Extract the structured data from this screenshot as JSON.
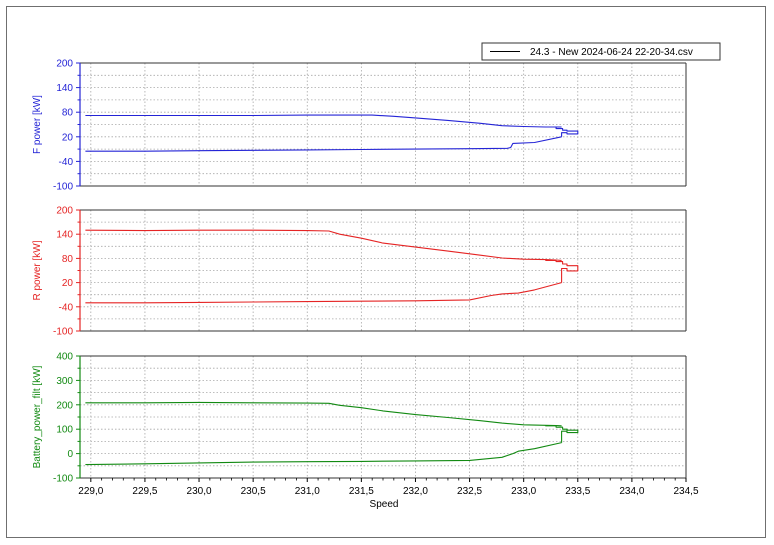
{
  "chart_data": {
    "type": "line",
    "xlabel": "Speed",
    "xlim": [
      228.9,
      234.5
    ],
    "xticks": [
      "229,0",
      "229,5",
      "230,0",
      "230,5",
      "231,0",
      "231,5",
      "232,0",
      "232,5",
      "233,0",
      "233,5",
      "234,0",
      "234,5"
    ],
    "xtick_values": [
      229.0,
      229.5,
      230.0,
      230.5,
      231.0,
      231.5,
      232.0,
      232.5,
      233.0,
      233.5,
      234.0,
      234.5
    ],
    "grid": true,
    "legend": {
      "placement": "top-right",
      "entries": [
        {
          "label": "24.3 - New 2024-06-24 22-20-34.csv",
          "color": "#000000"
        }
      ]
    },
    "panels": [
      {
        "id": "f-power",
        "ylabel": "F power [kW]",
        "color": "#2424d6",
        "ylim": [
          -100,
          200
        ],
        "yticks": [
          -100,
          -40,
          20,
          80,
          140,
          200
        ],
        "series": [
          {
            "x": [
              228.95,
              229.5,
              230.0,
              230.5,
              231.0,
              231.3,
              231.6,
              231.8,
              232.0,
              232.3,
              232.6,
              232.8,
              233.0,
              233.2,
              233.25,
              233.3,
              233.35
            ],
            "y": [
              72,
              72,
              72,
              72,
              73,
              73,
              73,
              70,
              66,
              60,
              53,
              47,
              45,
              44,
              44,
              44,
              44
            ]
          },
          {
            "x": [
              233.2,
              233.3,
              233.3,
              233.36,
              233.36,
              233.4,
              233.4,
              233.5,
              233.5,
              233.4,
              233.4,
              233.35,
              233.35
            ],
            "y": [
              44,
              44,
              40,
              40,
              36,
              36,
              34,
              34,
              27,
              27,
              30,
              30,
              20
            ]
          },
          {
            "x": [
              233.35,
              233.1,
              232.9,
              232.88,
              232.85,
              232.5,
              232.0,
              231.5,
              231.0,
              230.5,
              230.0,
              229.5,
              228.95
            ],
            "y": [
              20,
              6,
              4,
              -6,
              -8,
              -9,
              -10,
              -11,
              -12,
              -13,
              -14,
              -15,
              -15
            ]
          }
        ]
      },
      {
        "id": "r-power",
        "ylabel": "R power [kW]",
        "color": "#e52424",
        "ylim": [
          -100,
          200
        ],
        "yticks": [
          -100,
          -40,
          20,
          80,
          140,
          200
        ],
        "series": [
          {
            "x": [
              228.95,
              229.5,
              230.0,
              230.5,
              231.0,
              231.2,
              231.3,
              231.5,
              231.7,
              232.0,
              232.3,
              232.6,
              232.8,
              233.0,
              233.2,
              233.3,
              233.35
            ],
            "y": [
              150,
              149,
              150,
              150,
              149,
              148,
              140,
              130,
              118,
              108,
              98,
              88,
              81,
              78,
              77,
              76,
              75
            ]
          },
          {
            "x": [
              233.2,
              233.3,
              233.3,
              233.36,
              233.36,
              233.4,
              233.4,
              233.5,
              233.5,
              233.4,
              233.4,
              233.35,
              233.35
            ],
            "y": [
              75,
              75,
              72,
              72,
              66,
              66,
              62,
              62,
              49,
              49,
              55,
              55,
              20
            ]
          },
          {
            "x": [
              233.35,
              233.1,
              232.95,
              232.8,
              232.7,
              232.5,
              232.0,
              231.5,
              231.0,
              230.5,
              230.0,
              229.5,
              228.95
            ],
            "y": [
              20,
              2,
              -6,
              -8,
              -12,
              -23,
              -25,
              -26,
              -27,
              -28,
              -29,
              -30,
              -30
            ]
          }
        ]
      },
      {
        "id": "battery-power",
        "ylabel": "Battery_power_filt [kW]",
        "color": "#128a12",
        "ylim": [
          -100,
          400
        ],
        "yticks": [
          -100,
          0,
          100,
          200,
          300,
          400
        ],
        "series": [
          {
            "x": [
              228.95,
              229.5,
              230.0,
              230.5,
              231.0,
              231.2,
              231.3,
              231.5,
              231.7,
              232.0,
              232.3,
              232.6,
              232.8,
              233.0,
              233.2,
              233.3,
              233.35
            ],
            "y": [
              208,
              208,
              210,
              208,
              207,
              206,
              198,
              188,
              175,
              160,
              148,
              135,
              125,
              118,
              116,
              115,
              114
            ]
          },
          {
            "x": [
              233.2,
              233.3,
              233.3,
              233.36,
              233.36,
              233.4,
              233.4,
              233.5,
              233.5,
              233.4,
              233.4,
              233.35,
              233.35
            ],
            "y": [
              114,
              114,
              108,
              108,
              100,
              100,
              96,
              96,
              86,
              86,
              92,
              92,
              45
            ]
          },
          {
            "x": [
              233.35,
              233.1,
              232.95,
              232.9,
              232.8,
              232.5,
              232.0,
              231.5,
              231.0,
              230.5,
              230.0,
              229.5,
              228.95
            ],
            "y": [
              45,
              20,
              10,
              0,
              -15,
              -28,
              -30,
              -32,
              -33,
              -35,
              -38,
              -42,
              -45
            ]
          }
        ]
      }
    ]
  }
}
